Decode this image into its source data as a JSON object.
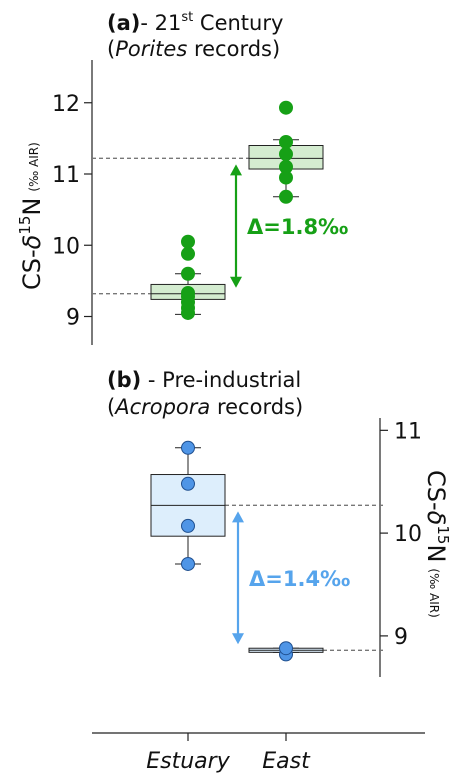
{
  "chart_data": [
    {
      "type": "box",
      "panel": "(a)",
      "title_prefix": "(a)",
      "title_main": "- 21",
      "title_sup": "st",
      "title_tail": " Century",
      "subtitle_open": "(",
      "subtitle_italic": "Porites",
      "subtitle_tail": " records)",
      "ylabel_main": "CS-",
      "ylabel_delta": "δ",
      "ylabel_sup": "15",
      "ylabel_n": "N",
      "ylabel_unit": "(‰ AIR)",
      "ylim": [
        8.6,
        12.6
      ],
      "yticks": [
        {
          "v": 9,
          "label": "9"
        },
        {
          "v": 10,
          "label": "10"
        },
        {
          "v": 11,
          "label": "11"
        },
        {
          "v": 12,
          "label": "12"
        }
      ],
      "colors": {
        "point": "#16a016",
        "box": "#d4ecd0",
        "arrow": "#16a016"
      },
      "delta_label": "Δ=1.8‰",
      "groups": [
        {
          "category": "Estuary",
          "whisker_low": 9.03,
          "q1": 9.24,
          "median": 9.32,
          "q3": 9.45,
          "whisker_high": 9.6,
          "points": [
            9.05,
            9.12,
            9.2,
            9.28,
            9.33,
            9.6,
            9.88,
            10.05
          ]
        },
        {
          "category": "East",
          "whisker_low": 10.68,
          "q1": 11.07,
          "median": 11.22,
          "q3": 11.4,
          "whisker_high": 11.48,
          "points": [
            10.68,
            10.95,
            11.1,
            11.28,
            11.45,
            11.93
          ]
        }
      ]
    },
    {
      "type": "box",
      "panel": "(b)",
      "title_prefix": "(b)",
      "title_main": " - Pre-industrial",
      "subtitle_open": "(",
      "subtitle_italic": "Acropora",
      "subtitle_tail": " records)",
      "ylabel_main": "CS-",
      "ylabel_delta": "δ",
      "ylabel_sup": "15",
      "ylabel_n": "N",
      "ylabel_unit": "(‰ AIR)",
      "ylim": [
        8.6,
        11.12
      ],
      "yticks": [
        {
          "v": 9,
          "label": "9"
        },
        {
          "v": 10,
          "label": "10"
        },
        {
          "v": 11,
          "label": "11"
        }
      ],
      "colors": {
        "point": "#4f95e6",
        "box": "#ddeefc",
        "arrow": "#56a4ec"
      },
      "delta_label": "Δ=1.4‰",
      "groups": [
        {
          "category": "Estuary",
          "whisker_low": 9.7,
          "q1": 9.97,
          "median": 10.27,
          "q3": 10.57,
          "whisker_high": 10.83,
          "points": [
            9.7,
            10.07,
            10.48,
            10.83
          ]
        },
        {
          "category": "East",
          "whisker_low": 8.84,
          "q1": 8.84,
          "median": 8.86,
          "q3": 8.88,
          "whisker_high": 8.88,
          "points": [
            8.82,
            8.88
          ]
        }
      ]
    }
  ],
  "xaxis": {
    "categories": [
      "Estuary",
      "East"
    ]
  }
}
